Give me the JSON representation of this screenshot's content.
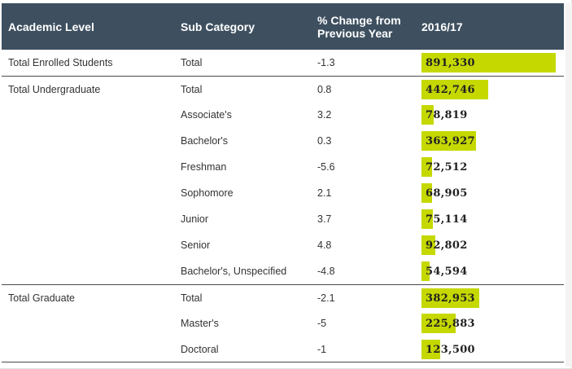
{
  "header": {
    "academic_level": "Academic Level",
    "sub_category": "Sub Category",
    "change_line1": "% Change from",
    "change_line2": "Previous Year",
    "year": "2016/17"
  },
  "colors": {
    "header_bg": "#3e5060",
    "bar": "#c5d800"
  },
  "rows": [
    {
      "level": "Total Enrolled Students",
      "sub": "Total",
      "change": "-1.3",
      "value": "891,330",
      "num": 891330
    },
    {
      "level": "Total Undergraduate",
      "sub": "Total",
      "change": "0.8",
      "value": "442,746",
      "num": 442746
    },
    {
      "level": "",
      "sub": "Associate's",
      "change": "3.2",
      "value": "78,819",
      "num": 78819
    },
    {
      "level": "",
      "sub": "Bachelor's",
      "change": "0.3",
      "value": "363,927",
      "num": 363927
    },
    {
      "level": "",
      "sub": "Freshman",
      "change": "-5.6",
      "value": "72,512",
      "num": 72512
    },
    {
      "level": "",
      "sub": "Sophomore",
      "change": "2.1",
      "value": "68,905",
      "num": 68905
    },
    {
      "level": "",
      "sub": "Junior",
      "change": "3.7",
      "value": "75,114",
      "num": 75114
    },
    {
      "level": "",
      "sub": "Senior",
      "change": "4.8",
      "value": "92,802",
      "num": 92802
    },
    {
      "level": "",
      "sub": "Bachelor's, Unspecified",
      "change": "-4.8",
      "value": "54,594",
      "num": 54594
    },
    {
      "level": "Total Graduate",
      "sub": "Total",
      "change": "-2.1",
      "value": "382,953",
      "num": 382953
    },
    {
      "level": "",
      "sub": "Master's",
      "change": "-5",
      "value": "225,883",
      "num": 225883
    },
    {
      "level": "",
      "sub": "Doctoral",
      "change": "-1",
      "value": "123,500",
      "num": 123500
    }
  ]
}
